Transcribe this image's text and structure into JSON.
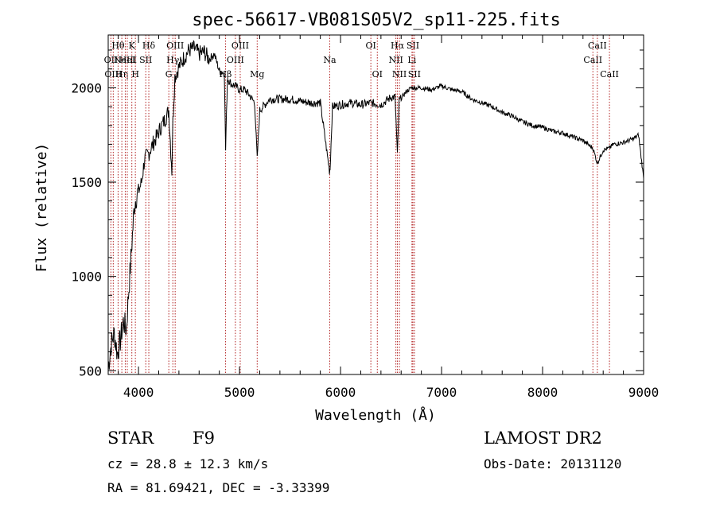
{
  "chart_data": {
    "type": "line",
    "title": "spec-56617-VB081S05V2_sp11-225.fits",
    "xlabel": "Wavelength (Å)",
    "ylabel": "Flux (relative)",
    "xlim": [
      3700,
      9000
    ],
    "ylim": [
      480,
      2280
    ],
    "xticks": [
      4000,
      5000,
      6000,
      7000,
      8000,
      9000
    ],
    "yticks": [
      500,
      1000,
      1500,
      2000
    ],
    "grid": false,
    "line_color": "#000000",
    "marker_color": "#b22222",
    "series": [
      {
        "x": [
          3700,
          3730,
          3760,
          3790,
          3820,
          3850,
          3880,
          3900,
          3920,
          3940,
          3960,
          3980,
          4000,
          4030,
          4060,
          4100,
          4140,
          4180,
          4220,
          4260,
          4300,
          4330,
          4340,
          4360,
          4400,
          4450,
          4500,
          4550,
          4600,
          4650,
          4700,
          4750,
          4800,
          4850,
          4862,
          4880,
          4920,
          4960,
          5000,
          5050,
          5100,
          5150,
          5175,
          5200,
          5300,
          5400,
          5500,
          5600,
          5700,
          5800,
          5890,
          5896,
          5920,
          6000,
          6100,
          6200,
          6300,
          6400,
          6500,
          6540,
          6563,
          6580,
          6650,
          6700,
          6800,
          6900,
          7000,
          7100,
          7200,
          7300,
          7400,
          7500,
          7600,
          7700,
          7800,
          7900,
          8000,
          8100,
          8200,
          8300,
          8400,
          8498,
          8542,
          8600,
          8662,
          8700,
          8800,
          8900,
          8950,
          9000
        ],
        "y": [
          520,
          640,
          700,
          590,
          660,
          760,
          720,
          900,
          1050,
          1220,
          1380,
          1430,
          1450,
          1500,
          1620,
          1650,
          1700,
          1740,
          1790,
          1830,
          1880,
          1560,
          1820,
          2060,
          2110,
          2160,
          2200,
          2210,
          2180,
          2190,
          2150,
          2180,
          2090,
          2080,
          1670,
          2050,
          2020,
          2010,
          1990,
          1990,
          1960,
          1920,
          1620,
          1880,
          1940,
          1940,
          1940,
          1930,
          1920,
          1920,
          1560,
          1570,
          1900,
          1910,
          1920,
          1910,
          1920,
          1910,
          1950,
          1950,
          1640,
          1930,
          1980,
          2000,
          2000,
          1990,
          2010,
          1990,
          1980,
          1940,
          1920,
          1900,
          1870,
          1850,
          1820,
          1800,
          1790,
          1770,
          1760,
          1740,
          1720,
          1680,
          1600,
          1670,
          1680,
          1700,
          1710,
          1730,
          1750,
          1520
        ]
      }
    ],
    "lines": [
      {
        "x": 3727,
        "labels": [
          "OII"
        ],
        "row": 1
      },
      {
        "x": 3750,
        "labels": [
          "OIII"
        ],
        "row": 2
      },
      {
        "x": 3798,
        "labels": [
          "Hθ"
        ],
        "row": 0
      },
      {
        "x": 3835,
        "labels": [
          "Hη"
        ],
        "row": 2
      },
      {
        "x": 3869,
        "labels": [
          "NeIII"
        ],
        "row": 1
      },
      {
        "x": 3889,
        "labels": [
          "HeI"
        ],
        "row": 1
      },
      {
        "x": 3934,
        "labels": [
          "K"
        ],
        "row": 0
      },
      {
        "x": 3969,
        "labels": [
          "H"
        ],
        "row": 2
      },
      {
        "x": 4072,
        "labels": [
          "SII"
        ],
        "row": 1
      },
      {
        "x": 4102,
        "labels": [
          "Hδ"
        ],
        "row": 0
      },
      {
        "x": 4300,
        "labels": [
          "G"
        ],
        "row": 2
      },
      {
        "x": 4340,
        "labels": [
          "Hγ"
        ],
        "row": 1
      },
      {
        "x": 4363,
        "labels": [
          "OIII"
        ],
        "row": 0
      },
      {
        "x": 4861,
        "labels": [
          "Hβ"
        ],
        "row": 2
      },
      {
        "x": 4959,
        "labels": [
          "OIII"
        ],
        "row": 1
      },
      {
        "x": 5007,
        "labels": [
          "OIII"
        ],
        "row": 0
      },
      {
        "x": 5175,
        "labels": [
          "Mg"
        ],
        "row": 2
      },
      {
        "x": 5893,
        "labels": [
          "Na"
        ],
        "row": 1
      },
      {
        "x": 6300,
        "labels": [
          "OI"
        ],
        "row": 0
      },
      {
        "x": 6364,
        "labels": [
          "OI"
        ],
        "row": 2
      },
      {
        "x": 6548,
        "labels": [
          "NII"
        ],
        "row": 1
      },
      {
        "x": 6563,
        "labels": [
          "Hα"
        ],
        "row": 0
      },
      {
        "x": 6583,
        "labels": [
          "NII"
        ],
        "row": 2
      },
      {
        "x": 6707,
        "labels": [
          "Li"
        ],
        "row": 1
      },
      {
        "x": 6716,
        "labels": [
          "SII"
        ],
        "row": 0
      },
      {
        "x": 6731,
        "labels": [
          "SII"
        ],
        "row": 2
      },
      {
        "x": 8498,
        "labels": [
          "CaII"
        ],
        "row": 1
      },
      {
        "x": 8542,
        "labels": [
          "CaII"
        ],
        "row": 0
      },
      {
        "x": 8662,
        "labels": [
          "CaII"
        ],
        "row": 2
      }
    ]
  },
  "info": {
    "object_class": "STAR",
    "subclass": "F9",
    "survey": "LAMOST DR2",
    "cz": "cz = 28.8 ± 12.3 km/s",
    "obs_date": "Obs-Date: 20131120",
    "coords": "RA =  81.69421, DEC =  -3.33399"
  }
}
